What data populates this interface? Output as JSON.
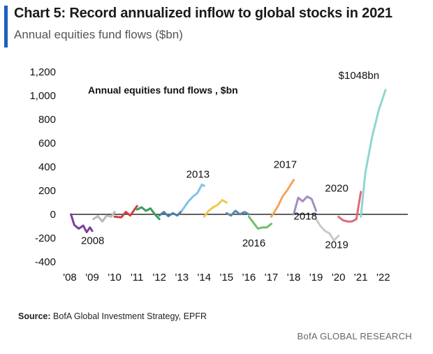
{
  "header": {
    "title": "Chart 5: Record annualized inflow to global stocks in 2021",
    "subtitle": "Annual equities fund flows ($bn)"
  },
  "footer": {
    "source_label": "Source:",
    "source_text": "BofA Global Investment Strategy, EPFR",
    "brand": "BofA GLOBAL RESEARCH"
  },
  "colors": {
    "accent": "#1f5fbf",
    "axis": "#000000"
  },
  "chart_data": {
    "type": "line",
    "title": "Annual equities fund flows , $bn",
    "xlabel": "",
    "ylabel": "",
    "ylim": [
      -400,
      1200
    ],
    "xlim": [
      2008,
      2022.6
    ],
    "grid": false,
    "legend": "none",
    "x_ticks": [
      "'08",
      "'09",
      "'10",
      "'11",
      "'12",
      "'13",
      "'14",
      "'15",
      "'16",
      "'17",
      "'18",
      "'19",
      "'20",
      "'21",
      "'22"
    ],
    "y_ticks": [
      "1,200",
      "1,000",
      "800",
      "600",
      "400",
      "200",
      "0",
      "-200",
      "-400"
    ],
    "annotations": [
      {
        "text": "2008",
        "x": 2008.5,
        "y": -250
      },
      {
        "text": "2013",
        "x": 2013.2,
        "y": 310
      },
      {
        "text": "2016",
        "x": 2015.7,
        "y": -270
      },
      {
        "text": "2017",
        "x": 2017.1,
        "y": 390
      },
      {
        "text": "2018",
        "x": 2018.0,
        "y": -45
      },
      {
        "text": "2019",
        "x": 2019.4,
        "y": -285
      },
      {
        "text": "2020",
        "x": 2019.4,
        "y": 190
      },
      {
        "text": "$1048bn",
        "x": 2020.0,
        "y": 1140
      }
    ],
    "series": [
      {
        "color": "#7b3f9c",
        "points": [
          [
            2008.05,
            0
          ],
          [
            2008.2,
            -90
          ],
          [
            2008.4,
            -120
          ],
          [
            2008.6,
            -95
          ],
          [
            2008.75,
            -150
          ],
          [
            2008.9,
            -110
          ],
          [
            2009.0,
            -140
          ]
        ]
      },
      {
        "color": "#b9b9b9",
        "points": [
          [
            2009.05,
            -40
          ],
          [
            2009.25,
            -15
          ],
          [
            2009.45,
            -60
          ],
          [
            2009.65,
            -10
          ],
          [
            2009.85,
            -20
          ],
          [
            2010.0,
            20
          ]
        ]
      },
      {
        "color": "#d04040",
        "points": [
          [
            2010.0,
            -20
          ],
          [
            2010.3,
            -25
          ],
          [
            2010.5,
            20
          ],
          [
            2010.7,
            -10
          ],
          [
            2010.85,
            30
          ],
          [
            2011.0,
            70
          ]
        ]
      },
      {
        "color": "#3a9d5c",
        "points": [
          [
            2011.0,
            40
          ],
          [
            2011.2,
            60
          ],
          [
            2011.4,
            30
          ],
          [
            2011.6,
            50
          ],
          [
            2011.8,
            0
          ],
          [
            2012.0,
            -40
          ]
        ]
      },
      {
        "color": "#4a7fa5",
        "points": [
          [
            2012.0,
            -10
          ],
          [
            2012.2,
            20
          ],
          [
            2012.4,
            -15
          ],
          [
            2012.6,
            10
          ],
          [
            2012.8,
            -10
          ],
          [
            2013.0,
            30
          ]
        ]
      },
      {
        "color": "#7fc3e8",
        "points": [
          [
            2013.0,
            30
          ],
          [
            2013.3,
            110
          ],
          [
            2013.5,
            150
          ],
          [
            2013.7,
            180
          ],
          [
            2013.9,
            250
          ],
          [
            2014.0,
            240
          ]
        ]
      },
      {
        "color": "#f0c94b",
        "points": [
          [
            2014.0,
            -20
          ],
          [
            2014.2,
            30
          ],
          [
            2014.4,
            60
          ],
          [
            2014.6,
            80
          ],
          [
            2014.8,
            120
          ],
          [
            2015.0,
            100
          ]
        ]
      },
      {
        "color": "#5a88a8",
        "points": [
          [
            2015.0,
            10
          ],
          [
            2015.2,
            -10
          ],
          [
            2015.4,
            30
          ],
          [
            2015.6,
            0
          ],
          [
            2015.8,
            20
          ],
          [
            2016.0,
            0
          ]
        ]
      },
      {
        "color": "#6fbf6a",
        "points": [
          [
            2016.0,
            -20
          ],
          [
            2016.2,
            -70
          ],
          [
            2016.4,
            -120
          ],
          [
            2016.6,
            -110
          ],
          [
            2016.8,
            -110
          ],
          [
            2017.0,
            -80
          ]
        ]
      },
      {
        "color": "#f4a35a",
        "points": [
          [
            2017.0,
            -20
          ],
          [
            2017.3,
            70
          ],
          [
            2017.5,
            150
          ],
          [
            2017.7,
            200
          ],
          [
            2017.9,
            260
          ],
          [
            2018.0,
            290
          ]
        ]
      },
      {
        "color": "#a78bc2",
        "points": [
          [
            2018.0,
            0
          ],
          [
            2018.2,
            140
          ],
          [
            2018.4,
            110
          ],
          [
            2018.6,
            150
          ],
          [
            2018.8,
            130
          ],
          [
            2019.0,
            30
          ]
        ]
      },
      {
        "color": "#c9c9c9",
        "points": [
          [
            2019.0,
            -40
          ],
          [
            2019.2,
            -100
          ],
          [
            2019.4,
            -140
          ],
          [
            2019.6,
            -160
          ],
          [
            2019.8,
            -220
          ],
          [
            2020.0,
            -180
          ]
        ]
      },
      {
        "color": "#e06a78",
        "points": [
          [
            2020.0,
            -20
          ],
          [
            2020.2,
            -50
          ],
          [
            2020.4,
            -60
          ],
          [
            2020.6,
            -60
          ],
          [
            2020.8,
            -40
          ],
          [
            2021.0,
            190
          ]
        ]
      },
      {
        "color": "#8fd6cf",
        "points": [
          [
            2021.0,
            -20
          ],
          [
            2021.2,
            350
          ],
          [
            2021.5,
            650
          ],
          [
            2021.8,
            880
          ],
          [
            2022.1,
            1048
          ]
        ]
      }
    ]
  }
}
